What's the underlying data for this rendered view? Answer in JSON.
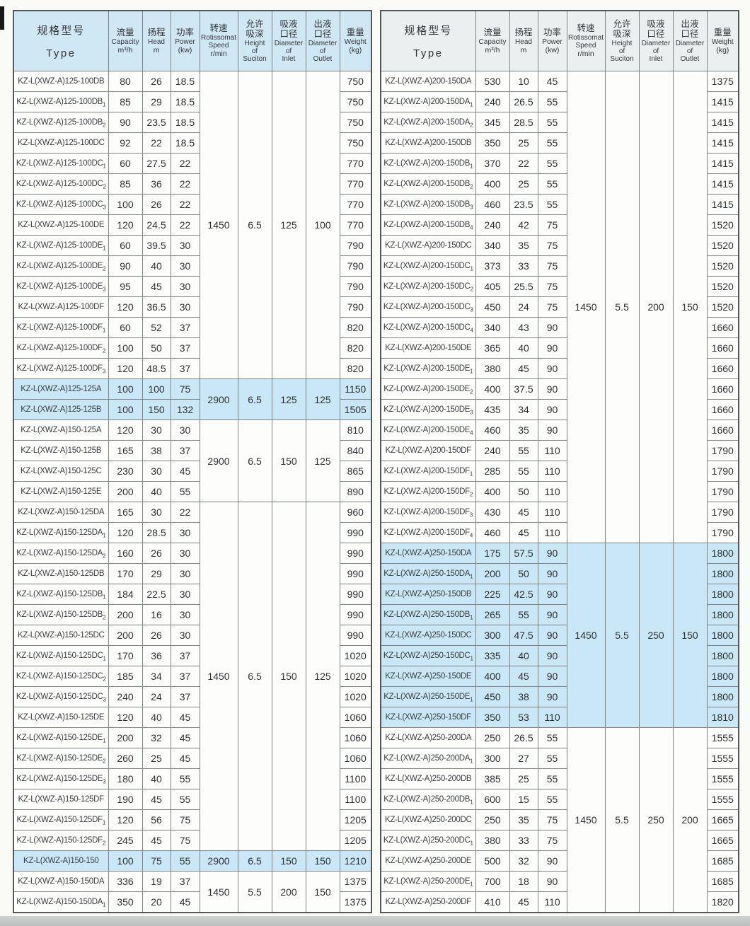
{
  "colors": {
    "highlight": "#c9e7f6",
    "left_header_bg": "#d0e8f4",
    "right_header_bg": "#eceff0",
    "inner_border": "#7e8588",
    "outer_border": "#53585b",
    "page_bg": "#fafaf7",
    "bottom_strip": "#c6cac9"
  },
  "header": {
    "type": {
      "cn": "规格型号",
      "en": "Type"
    },
    "cols": [
      {
        "cn": "流量",
        "en": "Capacity",
        "unit": "m³/h"
      },
      {
        "cn": "扬程",
        "en": "Head",
        "unit": "m"
      },
      {
        "cn": "功率",
        "en": "Power",
        "unit": "(kw)"
      },
      {
        "cn": "转速",
        "en": "Rotissomat\nSpeed",
        "unit": "r/min"
      },
      {
        "cn": "允许\n吸深",
        "en": "Height\nof\nSuciton",
        "unit": ""
      },
      {
        "cn": "吸液\n口径",
        "en": "Diameter\nof\nInlet",
        "unit": ""
      },
      {
        "cn": "出液\n口径",
        "en": "Diameter\nof\nOutlet",
        "unit": ""
      },
      {
        "cn": "重量",
        "en": "Weight",
        "unit": "(kg)"
      }
    ]
  },
  "tables": [
    {
      "name": "left",
      "rows": [
        [
          "KZ-L(XWZ-A)125-100DB",
          "80",
          "26",
          "18.5",
          "750",
          0
        ],
        [
          "KZ-L(XWZ-A)125-100DB₁",
          "85",
          "29",
          "18.5",
          "750",
          0
        ],
        [
          "KZ-L(XWZ-A)125-100DB₂",
          "90",
          "23.5",
          "18.5",
          "750",
          0
        ],
        [
          "KZ-L(XWZ-A)125-100DC",
          "92",
          "22",
          "18.5",
          "750",
          0
        ],
        [
          "KZ-L(XWZ-A)125-100DC₁",
          "60",
          "27.5",
          "22",
          "770",
          0
        ],
        [
          "KZ-L(XWZ-A)125-100DC₂",
          "85",
          "36",
          "22",
          "770",
          0
        ],
        [
          "KZ-L(XWZ-A)125-100DC₃",
          "100",
          "26",
          "22",
          "770",
          0
        ],
        [
          "KZ-L(XWZ-A)125-100DE",
          "120",
          "24.5",
          "22",
          "770",
          0
        ],
        [
          "KZ-L(XWZ-A)125-100DE₁",
          "60",
          "39.5",
          "30",
          "790",
          0
        ],
        [
          "KZ-L(XWZ-A)125-100DE₂",
          "90",
          "40",
          "30",
          "790",
          0
        ],
        [
          "KZ-L(XWZ-A)125-100DE₃",
          "95",
          "45",
          "30",
          "790",
          0
        ],
        [
          "KZ-L(XWZ-A)125-100DF",
          "120",
          "36.5",
          "30",
          "790",
          0
        ],
        [
          "KZ-L(XWZ-A)125-100DF₁",
          "60",
          "52",
          "37",
          "820",
          0
        ],
        [
          "KZ-L(XWZ-A)125-100DF₂",
          "100",
          "50",
          "37",
          "820",
          0
        ],
        [
          "KZ-L(XWZ-A)125-100DF₃",
          "120",
          "48.5",
          "37",
          "820",
          0
        ],
        [
          "KZ-L(XWZ-A)125-125A",
          "100",
          "100",
          "75",
          "1150",
          1
        ],
        [
          "KZ-L(XWZ-A)125-125B",
          "100",
          "150",
          "132",
          "1505",
          1
        ],
        [
          "KZ-L(XWZ-A)150-125A",
          "120",
          "30",
          "30",
          "810",
          0
        ],
        [
          "KZ-L(XWZ-A)150-125B",
          "165",
          "38",
          "37",
          "840",
          0
        ],
        [
          "KZ-L(XWZ-A)150-125C",
          "230",
          "30",
          "45",
          "865",
          0
        ],
        [
          "KZ-L(XWZ-A)150-125E",
          "200",
          "40",
          "55",
          "890",
          0
        ],
        [
          "KZ-L(XWZ-A)150-125DA",
          "165",
          "30",
          "22",
          "960",
          0
        ],
        [
          "KZ-L(XWZ-A)150-125DA₁",
          "120",
          "28.5",
          "30",
          "990",
          0
        ],
        [
          "KZ-L(XWZ-A)150-125DA₂",
          "160",
          "26",
          "30",
          "990",
          0
        ],
        [
          "KZ-L(XWZ-A)150-125DB",
          "170",
          "29",
          "30",
          "990",
          0
        ],
        [
          "KZ-L(XWZ-A)150-125DB₁",
          "184",
          "22.5",
          "30",
          "990",
          0
        ],
        [
          "KZ-L(XWZ-A)150-125DB₂",
          "200",
          "16",
          "30",
          "990",
          0
        ],
        [
          "KZ-L(XWZ-A)150-125DC",
          "200",
          "26",
          "30",
          "990",
          0
        ],
        [
          "KZ-L(XWZ-A)150-125DC₁",
          "170",
          "36",
          "37",
          "1020",
          0
        ],
        [
          "KZ-L(XWZ-A)150-125DC₂",
          "185",
          "34",
          "37",
          "1020",
          0
        ],
        [
          "KZ-L(XWZ-A)150-125DC₃",
          "240",
          "24",
          "37",
          "1020",
          0
        ],
        [
          "KZ-L(XWZ-A)150-125DE",
          "120",
          "40",
          "45",
          "1060",
          0
        ],
        [
          "KZ-L(XWZ-A)150-125DE₁",
          "200",
          "32",
          "45",
          "1060",
          0
        ],
        [
          "KZ-L(XWZ-A)150-125DE₂",
          "260",
          "25",
          "45",
          "1060",
          0
        ],
        [
          "KZ-L(XWZ-A)150-125DE₃",
          "180",
          "40",
          "55",
          "1100",
          0
        ],
        [
          "KZ-L(XWZ-A)150-125DF",
          "190",
          "45",
          "55",
          "1100",
          0
        ],
        [
          "KZ-L(XWZ-A)150-125DF₁",
          "120",
          "56",
          "75",
          "1205",
          0
        ],
        [
          "KZ-L(XWZ-A)150-125DF₂",
          "245",
          "45",
          "75",
          "1205",
          0
        ],
        [
          "KZ-L(XWZ-A)150-150",
          "100",
          "75",
          "55",
          "1210",
          1
        ],
        [
          "KZ-L(XWZ-A)150-150DA",
          "336",
          "19",
          "37",
          "1375",
          0
        ],
        [
          "KZ-L(XWZ-A)150-150DA₁",
          "350",
          "20",
          "45",
          "1375",
          0
        ]
      ],
      "groups": [
        {
          "rows": 15,
          "speed": "1450",
          "suction": "6.5",
          "inlet": "125",
          "outlet": "100",
          "hl": 0
        },
        {
          "rows": 2,
          "speed": "2900",
          "suction": "6.5",
          "inlet": "125",
          "outlet": "125",
          "hl": 1
        },
        {
          "rows": 4,
          "speed": "2900",
          "suction": "6.5",
          "inlet": "150",
          "outlet": "125",
          "hl": 0
        },
        {
          "rows": 17,
          "speed": "1450",
          "suction": "6.5",
          "inlet": "150",
          "outlet": "125",
          "hl": 0
        },
        {
          "rows": 1,
          "speed": "2900",
          "suction": "6.5",
          "inlet": "150",
          "outlet": "150",
          "hl": 1
        },
        {
          "rows": 2,
          "speed": "1450",
          "suction": "5.5",
          "inlet": "200",
          "outlet": "150",
          "hl": 0
        }
      ]
    },
    {
      "name": "right",
      "rows": [
        [
          "KZ-L(XWZ-A)200-150DA",
          "530",
          "10",
          "45",
          "1375",
          0
        ],
        [
          "KZ-L(XWZ-A)200-150DA₁",
          "240",
          "26.5",
          "55",
          "1415",
          0
        ],
        [
          "KZ-L(XWZ-A)200-150DA₂",
          "345",
          "28.5",
          "55",
          "1415",
          0
        ],
        [
          "KZ-L(XWZ-A)200-150DB",
          "350",
          "25",
          "55",
          "1415",
          0
        ],
        [
          "KZ-L(XWZ-A)200-150DB₁",
          "370",
          "22",
          "55",
          "1415",
          0
        ],
        [
          "KZ-L(XWZ-A)200-150DB₂",
          "400",
          "25",
          "55",
          "1415",
          0
        ],
        [
          "KZ-L(XWZ-A)200-150DB₃",
          "460",
          "23.5",
          "55",
          "1415",
          0
        ],
        [
          "KZ-L(XWZ-A)200-150DB₄",
          "240",
          "42",
          "75",
          "1520",
          0
        ],
        [
          "KZ-L(XWZ-A)200-150DC",
          "340",
          "35",
          "75",
          "1520",
          0
        ],
        [
          "KZ-L(XWZ-A)200-150DC₁",
          "373",
          "33",
          "75",
          "1520",
          0
        ],
        [
          "KZ-L(XWZ-A)200-150DC₂",
          "405",
          "25.5",
          "75",
          "1520",
          0
        ],
        [
          "KZ-L(XWZ-A)200-150DC₃",
          "450",
          "24",
          "75",
          "1520",
          0
        ],
        [
          "KZ-L(XWZ-A)200-150DC₄",
          "340",
          "43",
          "90",
          "1660",
          0
        ],
        [
          "KZ-L(XWZ-A)200-150DE",
          "365",
          "40",
          "90",
          "1660",
          0
        ],
        [
          "KZ-L(XWZ-A)200-150DE₁",
          "380",
          "45",
          "90",
          "1660",
          0
        ],
        [
          "KZ-L(XWZ-A)200-150DE₂",
          "400",
          "37.5",
          "90",
          "1660",
          0
        ],
        [
          "KZ-L(XWZ-A)200-150DE₃",
          "435",
          "34",
          "90",
          "1660",
          0
        ],
        [
          "KZ-L(XWZ-A)200-150DE₄",
          "460",
          "35",
          "90",
          "1660",
          0
        ],
        [
          "KZ-L(XWZ-A)200-150DF",
          "240",
          "55",
          "110",
          "1790",
          0
        ],
        [
          "KZ-L(XWZ-A)200-150DF₁",
          "285",
          "55",
          "110",
          "1790",
          0
        ],
        [
          "KZ-L(XWZ-A)200-150DF₂",
          "400",
          "50",
          "110",
          "1790",
          0
        ],
        [
          "KZ-L(XWZ-A)200-150DF₃",
          "430",
          "45",
          "110",
          "1790",
          0
        ],
        [
          "KZ-L(XWZ-A)200-150DF₄",
          "460",
          "45",
          "110",
          "1790",
          0
        ],
        [
          "KZ-L(XWZ-A)250-150DA",
          "175",
          "57.5",
          "90",
          "1800",
          1
        ],
        [
          "KZ-L(XWZ-A)250-150DA₁",
          "200",
          "50",
          "90",
          "1800",
          1
        ],
        [
          "KZ-L(XWZ-A)250-150DB",
          "225",
          "42.5",
          "90",
          "1800",
          1
        ],
        [
          "KZ-L(XWZ-A)250-150DB₁",
          "265",
          "55",
          "90",
          "1800",
          1
        ],
        [
          "KZ-L(XWZ-A)250-150DC",
          "300",
          "47.5",
          "90",
          "1800",
          1
        ],
        [
          "KZ-L(XWZ-A)250-150DC₁",
          "335",
          "40",
          "90",
          "1800",
          1
        ],
        [
          "KZ-L(XWZ-A)250-150DE",
          "400",
          "45",
          "90",
          "1800",
          1
        ],
        [
          "KZ-L(XWZ-A)250-150DE₁",
          "450",
          "38",
          "90",
          "1800",
          1
        ],
        [
          "KZ-L(XWZ-A)250-150DF",
          "350",
          "53",
          "110",
          "1810",
          1
        ],
        [
          "KZ-L(XWZ-A)250-200DA",
          "250",
          "26.5",
          "55",
          "1555",
          0
        ],
        [
          "KZ-L(XWZ-A)250-200DA₁",
          "300",
          "27",
          "55",
          "1555",
          0
        ],
        [
          "KZ-L(XWZ-A)250-200DB",
          "385",
          "25",
          "55",
          "1555",
          0
        ],
        [
          "KZ-L(XWZ-A)250-200DB₁",
          "600",
          "15",
          "55",
          "1555",
          0
        ],
        [
          "KZ-L(XWZ-A)250-200DC",
          "250",
          "35",
          "75",
          "1665",
          0
        ],
        [
          "KZ-L(XWZ-A)250-200DC₁",
          "380",
          "33",
          "75",
          "1665",
          0
        ],
        [
          "KZ-L(XWZ-A)250-200DE",
          "500",
          "32",
          "90",
          "1685",
          0
        ],
        [
          "KZ-L(XWZ-A)250-200DE₁",
          "700",
          "18",
          "90",
          "1685",
          0
        ],
        [
          "KZ-L(XWZ-A)250-200DF",
          "410",
          "45",
          "110",
          "1820",
          0
        ]
      ],
      "groups": [
        {
          "rows": 23,
          "speed": "1450",
          "suction": "5.5",
          "inlet": "200",
          "outlet": "150",
          "hl": 0
        },
        {
          "rows": 9,
          "speed": "1450",
          "suction": "5.5",
          "inlet": "250",
          "outlet": "150",
          "hl": 1
        },
        {
          "rows": 9,
          "speed": "1450",
          "suction": "5.5",
          "inlet": "250",
          "outlet": "200",
          "hl": 0
        }
      ]
    }
  ]
}
